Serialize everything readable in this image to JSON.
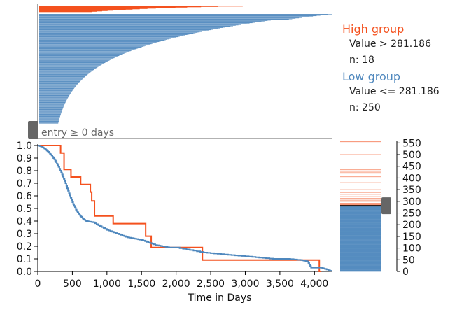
{
  "legend": {
    "high": {
      "title": "High group",
      "value_text": "Value > 281.186",
      "n_text": "n: 18",
      "color": "#f4511e"
    },
    "low": {
      "title": "Low group",
      "value_text": "Value <= 281.186",
      "n_text": "n: 250",
      "color": "#4e87bd"
    }
  },
  "entry_label": "entry ≥ 0 days",
  "chart_data": [
    {
      "type": "line",
      "name": "kaplan-meier",
      "xlabel": "Time in Days",
      "xlim": [
        0,
        4250
      ],
      "ylim": [
        0,
        1
      ],
      "xticks": [
        "0",
        "500",
        "1,000",
        "1,500",
        "2,000",
        "2,500",
        "3,000",
        "3,500",
        "4,000"
      ],
      "xtick_values": [
        0,
        500,
        1000,
        1500,
        2000,
        2500,
        3000,
        3500,
        4000
      ],
      "yticks": [
        "0.0",
        "0.1",
        "0.2",
        "0.3",
        "0.4",
        "0.5",
        "0.6",
        "0.7",
        "0.8",
        "0.9",
        "1.0"
      ],
      "ytick_values": [
        0,
        0.1,
        0.2,
        0.3,
        0.4,
        0.5,
        0.6,
        0.7,
        0.8,
        0.9,
        1.0
      ],
      "grid": false,
      "series": [
        {
          "group": "high",
          "color": "#f4511e",
          "points": [
            [
              0,
              1
            ],
            [
              330,
              1
            ],
            [
              330,
              0.94
            ],
            [
              380,
              0.94
            ],
            [
              380,
              0.81
            ],
            [
              480,
              0.81
            ],
            [
              480,
              0.75
            ],
            [
              620,
              0.75
            ],
            [
              620,
              0.69
            ],
            [
              760,
              0.69
            ],
            [
              760,
              0.63
            ],
            [
              780,
              0.63
            ],
            [
              780,
              0.56
            ],
            [
              820,
              0.56
            ],
            [
              820,
              0.44
            ],
            [
              1090,
              0.44
            ],
            [
              1090,
              0.38
            ],
            [
              1560,
              0.38
            ],
            [
              1560,
              0.28
            ],
            [
              1640,
              0.28
            ],
            [
              1640,
              0.19
            ],
            [
              2380,
              0.19
            ],
            [
              2380,
              0.09
            ],
            [
              4070,
              0.09
            ],
            [
              4070,
              0.0
            ],
            [
              4100,
              0.0
            ]
          ]
        },
        {
          "group": "low",
          "color": "#4e87bd",
          "points": [
            [
              0,
              1
            ],
            [
              60,
              0.99
            ],
            [
              110,
              0.97
            ],
            [
              150,
              0.95
            ],
            [
              200,
              0.92
            ],
            [
              250,
              0.88
            ],
            [
              300,
              0.83
            ],
            [
              350,
              0.77
            ],
            [
              400,
              0.7
            ],
            [
              450,
              0.62
            ],
            [
              500,
              0.55
            ],
            [
              550,
              0.49
            ],
            [
              600,
              0.45
            ],
            [
              650,
              0.42
            ],
            [
              700,
              0.4
            ],
            [
              800,
              0.39
            ],
            [
              900,
              0.36
            ],
            [
              1000,
              0.33
            ],
            [
              1100,
              0.31
            ],
            [
              1200,
              0.29
            ],
            [
              1300,
              0.27
            ],
            [
              1400,
              0.26
            ],
            [
              1500,
              0.25
            ],
            [
              1600,
              0.23
            ],
            [
              1700,
              0.21
            ],
            [
              1800,
              0.2
            ],
            [
              1900,
              0.19
            ],
            [
              2000,
              0.19
            ],
            [
              2200,
              0.17
            ],
            [
              2400,
              0.15
            ],
            [
              2600,
              0.14
            ],
            [
              2800,
              0.13
            ],
            [
              3000,
              0.12
            ],
            [
              3200,
              0.11
            ],
            [
              3400,
              0.1
            ],
            [
              3600,
              0.1
            ],
            [
              3800,
              0.09
            ],
            [
              3900,
              0.08
            ],
            [
              3950,
              0.03
            ],
            [
              4100,
              0.03
            ],
            [
              4150,
              0.02
            ],
            [
              4250,
              0.0
            ]
          ]
        }
      ]
    },
    {
      "type": "bar",
      "name": "entry-time-bars",
      "orientation": "horizontal",
      "description_scale": "ranked per-subject follow-up time, same x scale as survival plot",
      "series": [
        {
          "group": "high",
          "color": "#f4511e",
          "count": 18,
          "max_value": 4100
        },
        {
          "group": "low",
          "color": "#4e87bd",
          "count": 250,
          "max_value": 4250
        }
      ]
    },
    {
      "type": "scatter",
      "name": "value-strip",
      "ylim": [
        0,
        560
      ],
      "yticks": [
        "0",
        "50",
        "100",
        "150",
        "200",
        "250",
        "300",
        "350",
        "400",
        "450",
        "500",
        "550"
      ],
      "ytick_values": [
        0,
        50,
        100,
        150,
        200,
        250,
        300,
        350,
        400,
        450,
        500,
        550
      ],
      "threshold": 281.186,
      "series": [
        {
          "group": "high",
          "color": "#f4511e",
          "values": [
            283,
            285,
            288,
            292,
            300,
            305,
            312,
            320,
            330,
            338,
            350,
            380,
            405,
            420,
            425,
            435,
            500,
            555
          ]
        },
        {
          "group": "low",
          "color": "#4e87bd",
          "min": 0,
          "max": 281
        }
      ]
    }
  ]
}
